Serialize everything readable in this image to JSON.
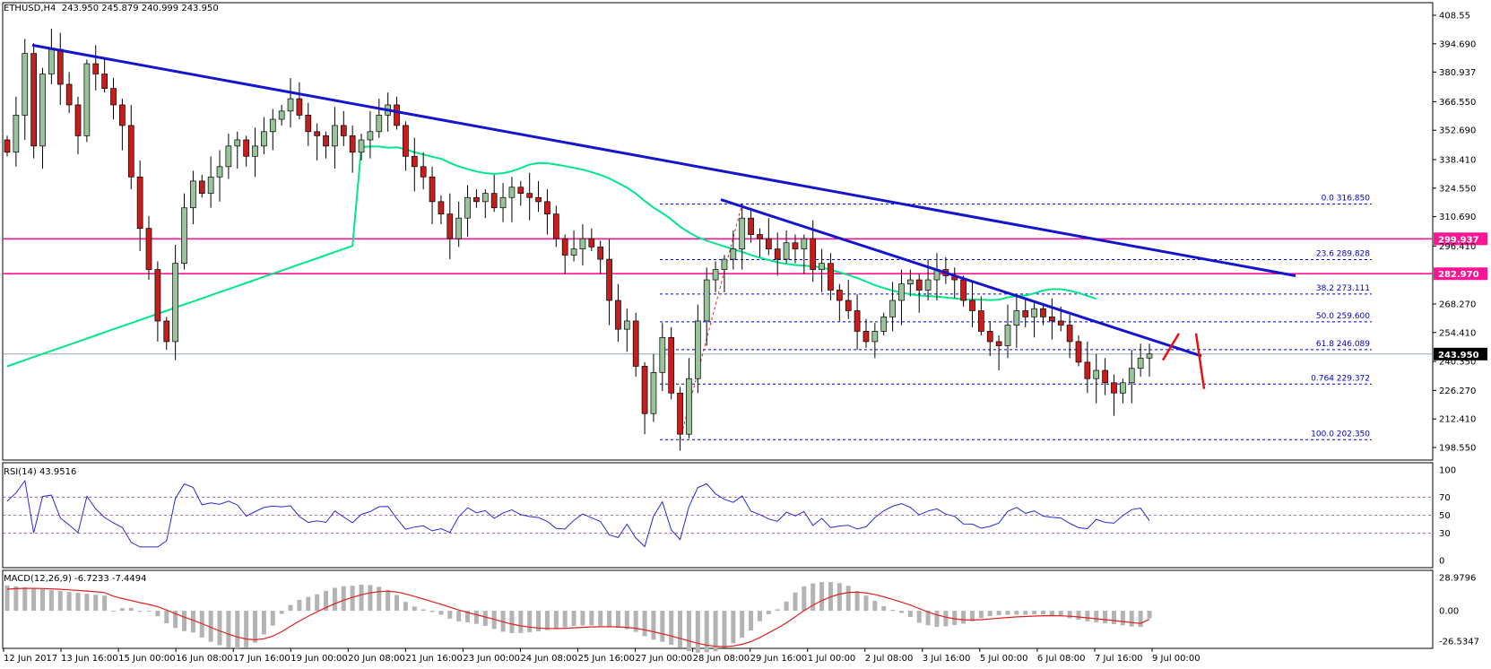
{
  "header": {
    "symbol": "ETHUSD,H4",
    "ohlc": "243.950 245.879 240.999 243.950"
  },
  "rsi_header": "RSI(14) 43.9516",
  "macd_header": "MACD(12,26,9) -6.7233 -7.4494",
  "price_axis_ticks": [
    "408.55",
    "394.690",
    "380.937",
    "366.550",
    "352.690",
    "338.410",
    "324.550",
    "310.690",
    "296.410",
    "268.270",
    "254.410",
    "240.350",
    "226.270",
    "212.410",
    "198.550"
  ],
  "price_levels": [
    {
      "label": "299.937",
      "price": 299.937,
      "color": "#ff1493"
    },
    {
      "label": "282.970",
      "price": 282.97,
      "color": "#ff1493"
    },
    {
      "label": "243.950",
      "price": 243.95,
      "color": "#000000"
    }
  ],
  "rsi_ticks": [
    "100",
    "70",
    "50",
    "30",
    "0"
  ],
  "macd_ticks": [
    "28.9796",
    "0.00",
    "-26.5347"
  ],
  "time_labels": [
    "12 Jun 2017",
    "13 Jun 16:00",
    "15 Jun 00:00",
    "16 Jun 08:00",
    "17 Jun 16:00",
    "19 Jun 00:00",
    "20 Jun 08:00",
    "21 Jun 16:00",
    "23 Jun 00:00",
    "24 Jun 08:00",
    "25 Jun 16:00",
    "27 Jun 00:00",
    "28 Jun 08:00",
    "29 Jun 16:00",
    "1 Jul 00:00",
    "2 Jul 08:00",
    "3 Jul 16:00",
    "5 Jul 00:00",
    "6 Jul 08:00",
    "7 Jul 16:00",
    "9 Jul 00:00"
  ],
  "fib_levels": [
    {
      "label": "0.0  316.850",
      "price": 316.85
    },
    {
      "label": "23.6  289.828",
      "price": 289.828
    },
    {
      "label": "38.2  273.111",
      "price": 273.111
    },
    {
      "label": "50.0  259.600",
      "price": 259.6
    },
    {
      "label": "61.8  246.089",
      "price": 246.089
    },
    {
      "label": "0.764  229.372",
      "price": 229.372
    },
    {
      "label": "100.0  202.350",
      "price": 202.35
    }
  ],
  "chart_data": {
    "type": "candlestick",
    "symbol": "ETHUSD",
    "timeframe": "H4",
    "ylim": [
      198.55,
      408.55
    ],
    "horizontal_levels": [
      299.937,
      282.97
    ],
    "current_price": 243.95,
    "closes": [
      342,
      360,
      390,
      345,
      380,
      392,
      375,
      365,
      350,
      385,
      380,
      373,
      365,
      355,
      330,
      305,
      285,
      260,
      250,
      288,
      315,
      328,
      322,
      330,
      335,
      345,
      348,
      340,
      345,
      352,
      358,
      362,
      368,
      360,
      352,
      350,
      345,
      355,
      350,
      342,
      348,
      352,
      360,
      365,
      355,
      340,
      335,
      330,
      318,
      312,
      300,
      310,
      320,
      318,
      322,
      315,
      320,
      325,
      322,
      320,
      318,
      312,
      300,
      292,
      295,
      300,
      296,
      290,
      270,
      256,
      260,
      238,
      215,
      235,
      252,
      225,
      205,
      232,
      260,
      280,
      285,
      290,
      295,
      310,
      302,
      300,
      295,
      290,
      298,
      295,
      300,
      285,
      288,
      275,
      270,
      265,
      255,
      250,
      255,
      262,
      270,
      278,
      280,
      275,
      280,
      285,
      282,
      280,
      270,
      265,
      255,
      250,
      248,
      258,
      265,
      262,
      266,
      262,
      260,
      258,
      250,
      240,
      232,
      236,
      230,
      225,
      230,
      237,
      242,
      244
    ],
    "rsi": {
      "period": 14,
      "last": 43.9516,
      "levels": [
        70,
        50,
        30
      ],
      "ylim": [
        0,
        100
      ]
    },
    "macd": {
      "fast": 12,
      "slow": 26,
      "signal": 9,
      "macd": -6.7233,
      "signal_value": -7.4494,
      "ylim": [
        -26.5347,
        28.9796
      ]
    },
    "fibonacci": {
      "high": 316.85,
      "low": 202.35
    },
    "moving_average_color": "#00e68a"
  },
  "colors": {
    "bull_fill": "#98c39b",
    "bear_fill": "#c61d1d",
    "candle_outline": "#000000",
    "trend_blue": "#1515cc",
    "ma_green": "#00e68a",
    "level_magenta": "#ff1493",
    "fib_blue": "#0000c8",
    "rsi_line": "#2929d6",
    "macd_signal": "#e02020",
    "macd_hist": "#b3b3b3",
    "red_arrow": "#e81010"
  }
}
